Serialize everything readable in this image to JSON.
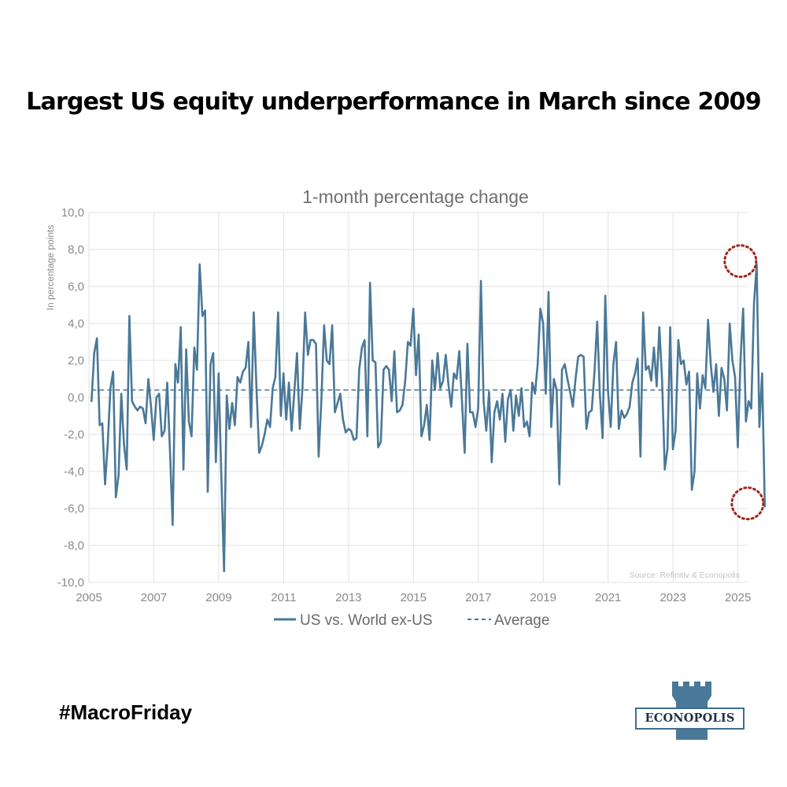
{
  "headline": "Largest US equity underperformance in March since 2009",
  "hashtag": "#MacroFriday",
  "logo": {
    "text": "ECONOPOLIS",
    "icon": "castle-tower-icon"
  },
  "colors": {
    "series": "#4a7898",
    "grid": "#e2e2e2",
    "axis_text": "#8a8a8a",
    "title_text": "#6f6f6f",
    "highlight_circle": "#a3261c"
  },
  "chart_data": {
    "type": "line",
    "title": "1-month percentage change",
    "ylabel": "In percentage points",
    "source": "Source: Refinitiv & Econopolis",
    "xlim": [
      2005,
      2025.3
    ],
    "ylim": [
      -10,
      10
    ],
    "xticks": [
      2005,
      2007,
      2009,
      2011,
      2013,
      2015,
      2017,
      2019,
      2021,
      2023,
      2025
    ],
    "yticks": [
      -10,
      -8,
      -6,
      -4,
      -2,
      0,
      2,
      4,
      6,
      8,
      10
    ],
    "decimal_separator": ",",
    "legend_position": "bottom",
    "grid": true,
    "highlighted_points": [
      [
        2024.98,
        7.2
      ],
      [
        2025.2,
        -5.9
      ]
    ],
    "series": [
      {
        "name": "US vs. World ex-US",
        "style": "solid",
        "x_start": 2005.08,
        "x_step": 0.08333,
        "values": [
          -0.2,
          2.4,
          3.2,
          -1.5,
          -1.4,
          -4.7,
          -2.5,
          0.5,
          1.4,
          -5.4,
          -4.2,
          0.2,
          -2.5,
          -3.9,
          4.4,
          -0.2,
          -0.5,
          -0.7,
          -0.5,
          -0.6,
          -1.4,
          1.0,
          -0.5,
          -2.3,
          0.0,
          0.2,
          -2.1,
          -1.8,
          0.8,
          -2.8,
          -6.9,
          1.8,
          0.8,
          3.8,
          -3.9,
          2.6,
          -1.3,
          -2.1,
          2.7,
          1.5,
          7.2,
          4.4,
          4.7,
          -5.1,
          1.8,
          2.4,
          -3.5,
          1.3,
          -4.2,
          -9.4,
          0.1,
          -1.7,
          -0.3,
          -1.5,
          1.1,
          0.8,
          1.4,
          1.6,
          3.0,
          -1.6,
          4.6,
          0.5,
          -3.0,
          -2.6,
          -2.0,
          -1.2,
          -1.6,
          0.5,
          1.1,
          4.6,
          -1.0,
          1.3,
          -1.2,
          0.8,
          -1.8,
          0.3,
          2.4,
          -1.7,
          0.5,
          4.6,
          2.3,
          3.1,
          3.1,
          2.9,
          -3.2,
          -0.2,
          3.9,
          2.0,
          1.8,
          3.9,
          -0.8,
          -0.3,
          0.2,
          -1.2,
          -1.9,
          -1.7,
          -1.8,
          -2.3,
          -2.2,
          1.5,
          2.7,
          3.1,
          -2.1,
          6.2,
          2.0,
          1.9,
          -2.7,
          -2.4,
          1.5,
          1.7,
          1.5,
          -0.2,
          2.5,
          -0.8,
          -0.7,
          -0.4,
          0.9,
          3.0,
          2.8,
          4.8,
          1.2,
          3.4,
          -2.1,
          -1.5,
          -0.4,
          -2.3,
          2.0,
          0.4,
          2.4,
          0.5,
          0.9,
          2.3,
          0.7,
          -0.5,
          1.3,
          1.0,
          2.5,
          -0.2,
          -3.0,
          2.9,
          -0.8,
          -0.8,
          -1.6,
          -0.6,
          6.3,
          -0.2,
          -1.8,
          0.3,
          -3.5,
          -0.8,
          -0.2,
          -1.2,
          0.2,
          -2.4,
          -0.1,
          0.4,
          -1.8,
          0.1,
          -1.0,
          0.5,
          -1.6,
          -1.3,
          -2.1,
          0.8,
          0.2,
          1.8,
          4.8,
          4.0,
          0.2,
          5.7,
          -1.6,
          1.0,
          0.4,
          -4.7,
          1.5,
          1.8,
          1.0,
          0.3,
          -0.5,
          1.0,
          2.2,
          2.3,
          2.2,
          -1.7,
          -0.8,
          -0.7,
          1.4,
          4.1,
          0.2,
          -2.2,
          5.5,
          0.4,
          -1.6,
          1.8,
          3.0,
          -1.7,
          -0.7,
          -1.1,
          -0.9,
          -0.5,
          0.8,
          1.3,
          2.1,
          -3.2,
          4.6,
          1.5,
          1.7,
          0.9,
          2.7,
          0.6,
          3.8,
          0.9,
          -3.9,
          -2.8,
          3.8,
          -2.8,
          -1.8,
          3.1,
          1.8,
          2.0,
          0.7,
          1.4,
          -5.0,
          -4.0,
          1.3,
          -0.6,
          1.2,
          0.5,
          4.2,
          1.8,
          0.3,
          1.8,
          -1.0,
          1.6,
          1.0,
          -0.7,
          4.0,
          2.0,
          1.1,
          -2.7,
          2.0,
          4.8,
          -1.3,
          -0.2,
          -0.6,
          5.1,
          7.2,
          -1.6,
          1.3,
          -5.9
        ]
      },
      {
        "name": "Average",
        "style": "dashed",
        "x": [
          2005.08,
          2025.2
        ],
        "y": [
          0.4,
          0.4
        ]
      }
    ]
  }
}
